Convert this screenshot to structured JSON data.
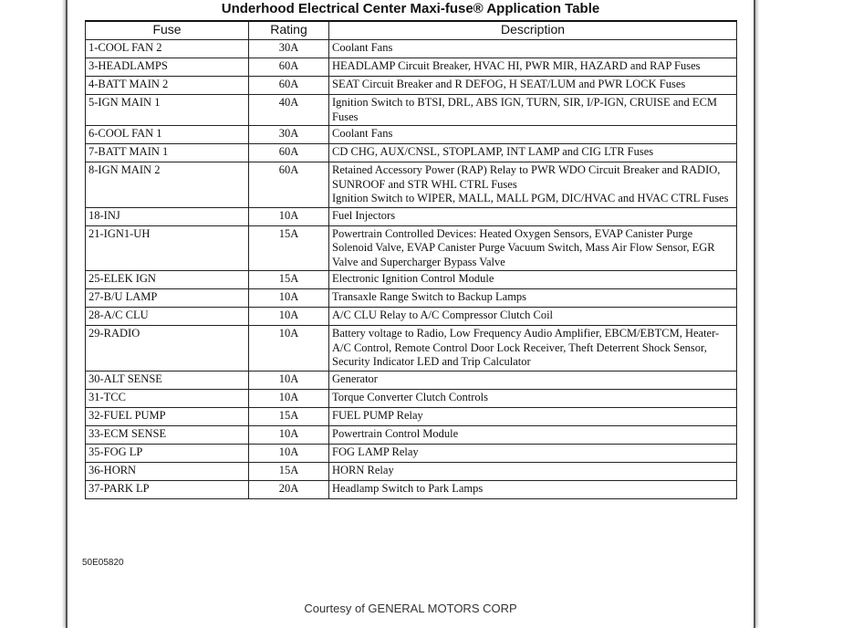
{
  "title": "Underhood Electrical Center Maxi-fuse® Application Table",
  "headers": [
    "Fuse",
    "Rating",
    "Description"
  ],
  "rows": [
    {
      "fuse": "1-COOL FAN 2",
      "rating": "30A",
      "desc": "Coolant Fans"
    },
    {
      "fuse": "3-HEADLAMPS",
      "rating": "60A",
      "desc": "HEADLAMP Circuit Breaker, HVAC HI, PWR MIR, HAZARD and RAP Fuses"
    },
    {
      "fuse": "4-BATT MAIN 2",
      "rating": "60A",
      "desc": "SEAT Circuit Breaker and R DEFOG, H SEAT/LUM and PWR LOCK Fuses"
    },
    {
      "fuse": "5-IGN MAIN 1",
      "rating": "40A",
      "desc": "Ignition Switch to BTSI, DRL, ABS IGN, TURN, SIR, I/P-IGN, CRUISE and ECM Fuses"
    },
    {
      "fuse": "6-COOL FAN 1",
      "rating": "30A",
      "desc": "Coolant Fans"
    },
    {
      "fuse": "7-BATT MAIN 1",
      "rating": "60A",
      "desc": "CD CHG, AUX/CNSL, STOPLAMP, INT LAMP and CIG LTR Fuses"
    },
    {
      "fuse": "8-IGN MAIN 2",
      "rating": "60A",
      "desc": "Retained Accessory Power (RAP) Relay to PWR WDO Circuit Breaker and RADIO, SUNROOF and STR WHL CTRL Fuses",
      "desc2": "Ignition Switch to WIPER, MALL, MALL PGM, DIC/HVAC and HVAC CTRL Fuses"
    },
    {
      "fuse": "18-INJ",
      "rating": "10A",
      "desc": "Fuel Injectors"
    },
    {
      "fuse": "21-IGN1-UH",
      "rating": "15A",
      "desc": "Powertrain Controlled Devices: Heated Oxygen Sensors, EVAP Canister Purge Solenoid Valve, EVAP Canister Purge Vacuum Switch, Mass Air Flow Sensor, EGR Valve and Supercharger Bypass Valve"
    },
    {
      "fuse": "25-ELEK IGN",
      "rating": "15A",
      "desc": "Electronic Ignition Control Module"
    },
    {
      "fuse": "27-B/U LAMP",
      "rating": "10A",
      "desc": "Transaxle Range Switch to Backup Lamps"
    },
    {
      "fuse": "28-A/C CLU",
      "rating": "10A",
      "desc": "A/C CLU Relay to A/C Compressor Clutch Coil"
    },
    {
      "fuse": "29-RADIO",
      "rating": "10A",
      "desc": "Battery voltage to Radio, Low Frequency Audio Amplifier, EBCM/EBTCM, Heater-A/C Control, Remote Control Door Lock Receiver, Theft Deterrent Shock Sensor, Security Indicator LED and Trip Calculator"
    },
    {
      "fuse": "30-ALT SENSE",
      "rating": "10A",
      "desc": "Generator"
    },
    {
      "fuse": "31-TCC",
      "rating": "10A",
      "desc": "Torque Converter Clutch Controls"
    },
    {
      "fuse": "32-FUEL PUMP",
      "rating": "15A",
      "desc": "FUEL PUMP Relay"
    },
    {
      "fuse": "33-ECM SENSE",
      "rating": "10A",
      "desc": "Powertrain Control Module"
    },
    {
      "fuse": "35-FOG LP",
      "rating": "10A",
      "desc": "FOG LAMP Relay"
    },
    {
      "fuse": "36-HORN",
      "rating": "15A",
      "desc": "HORN Relay"
    },
    {
      "fuse": "37-PARK LP",
      "rating": "20A",
      "desc": "Headlamp Switch to Park Lamps"
    }
  ],
  "figure_code": "50E05820",
  "courtesy": "Courtesy of GENERAL MOTORS CORP"
}
